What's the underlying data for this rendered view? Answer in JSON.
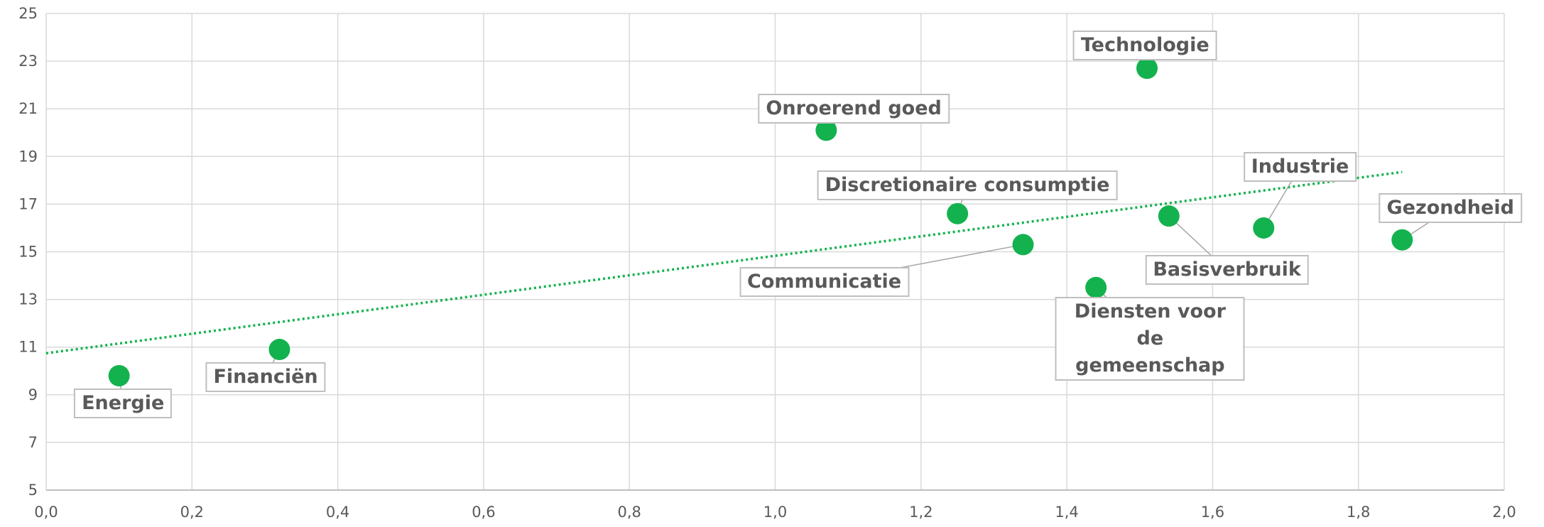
{
  "chart_data": {
    "type": "scatter",
    "labels": [
      "Energie",
      "Financiën",
      "Onroerend goed",
      "Discretionaire consumptie",
      "Communicatie",
      "Technologie",
      "Diensten voor de gemeenschap",
      "Basisverbruik",
      "Industrie",
      "Gezondheid"
    ],
    "x": [
      0.1,
      0.32,
      1.07,
      1.25,
      1.34,
      1.51,
      1.44,
      1.54,
      1.67,
      1.86
    ],
    "values": [
      9.8,
      10.9,
      20.1,
      16.6,
      15.3,
      22.7,
      13.5,
      16.5,
      16.0,
      15.5
    ],
    "color": "#13b24f",
    "trendline": "linear",
    "xlim": [
      0,
      2
    ],
    "ylim": [
      5,
      25
    ],
    "xticks": [
      {
        "value": 0,
        "label": "0,0"
      },
      {
        "value": 0.2,
        "label": "0,2"
      },
      {
        "value": 0.4,
        "label": "0,4"
      },
      {
        "value": 0.6,
        "label": "0,6"
      },
      {
        "value": 0.8,
        "label": "0,8"
      },
      {
        "value": 1.0,
        "label": "1,0"
      },
      {
        "value": 1.2,
        "label": "1,2"
      },
      {
        "value": 1.4,
        "label": "1,4"
      },
      {
        "value": 1.6,
        "label": "1,6"
      },
      {
        "value": 1.8,
        "label": "1,8"
      },
      {
        "value": 2.0,
        "label": "2,0"
      }
    ],
    "yticks": [
      5,
      7,
      9,
      11,
      13,
      15,
      17,
      19,
      21,
      23,
      25
    ],
    "grid": true
  }
}
